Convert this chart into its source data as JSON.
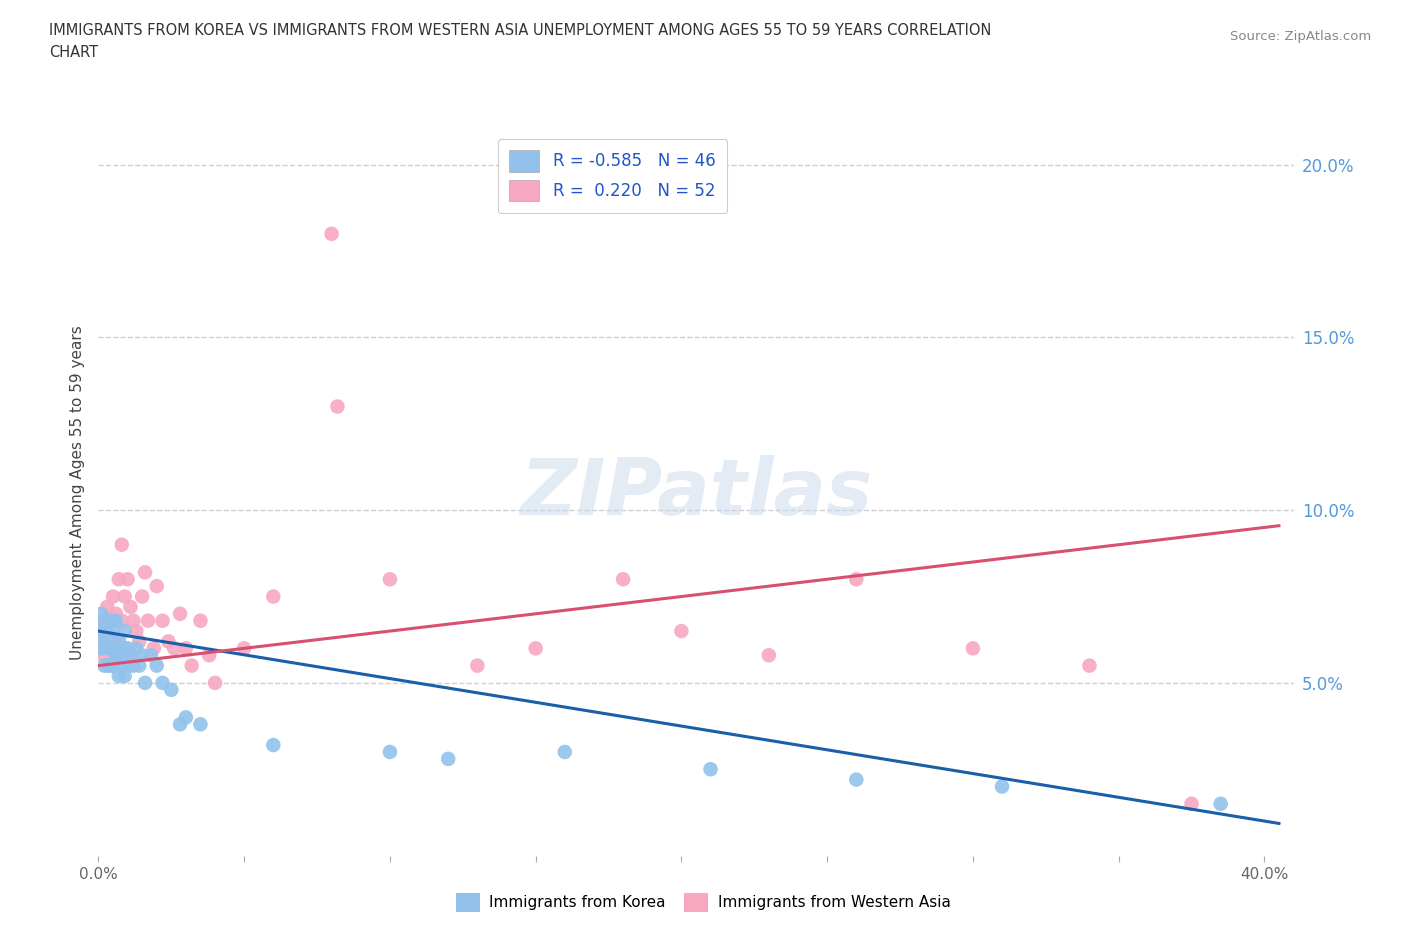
{
  "title_line1": "IMMIGRANTS FROM KOREA VS IMMIGRANTS FROM WESTERN ASIA UNEMPLOYMENT AMONG AGES 55 TO 59 YEARS CORRELATION",
  "title_line2": "CHART",
  "source": "Source: ZipAtlas.com",
  "ylabel": "Unemployment Among Ages 55 to 59 years",
  "xlim": [
    0.0,
    0.41
  ],
  "ylim": [
    0.0,
    0.21
  ],
  "korea_R": -0.585,
  "korea_N": 46,
  "western_asia_R": 0.22,
  "western_asia_N": 52,
  "korea_color": "#92c2ec",
  "western_asia_color": "#f7a8c0",
  "korea_line_color": "#1a5faa",
  "western_asia_line_color": "#d85070",
  "watermark_text": "ZIPatlas",
  "background_color": "#ffffff",
  "grid_color": "#d0d0d0",
  "ytick_positions": [
    0.05,
    0.1,
    0.15,
    0.2
  ],
  "ytick_labels": [
    "5.0%",
    "10.0%",
    "15.0%",
    "20.0%"
  ],
  "legend_korea_label": "R = -0.585   N = 46",
  "legend_western_label": "R =  0.220   N = 52",
  "bottom_legend_korea": "Immigrants from Korea",
  "bottom_legend_western": "Immigrants from Western Asia",
  "korea_x": [
    0.001,
    0.001,
    0.001,
    0.002,
    0.002,
    0.002,
    0.003,
    0.003,
    0.003,
    0.004,
    0.004,
    0.005,
    0.005,
    0.005,
    0.006,
    0.006,
    0.007,
    0.007,
    0.007,
    0.008,
    0.008,
    0.009,
    0.009,
    0.01,
    0.01,
    0.011,
    0.012,
    0.013,
    0.014,
    0.015,
    0.016,
    0.018,
    0.02,
    0.022,
    0.025,
    0.028,
    0.03,
    0.035,
    0.06,
    0.1,
    0.12,
    0.16,
    0.21,
    0.26,
    0.31,
    0.385
  ],
  "korea_y": [
    0.07,
    0.065,
    0.06,
    0.068,
    0.062,
    0.055,
    0.065,
    0.06,
    0.055,
    0.068,
    0.055,
    0.065,
    0.06,
    0.055,
    0.068,
    0.058,
    0.062,
    0.058,
    0.052,
    0.06,
    0.055,
    0.065,
    0.052,
    0.06,
    0.055,
    0.058,
    0.055,
    0.06,
    0.055,
    0.058,
    0.05,
    0.058,
    0.055,
    0.05,
    0.048,
    0.038,
    0.04,
    0.038,
    0.032,
    0.03,
    0.028,
    0.03,
    0.025,
    0.022,
    0.02,
    0.015
  ],
  "western_x": [
    0.001,
    0.001,
    0.002,
    0.002,
    0.003,
    0.003,
    0.004,
    0.004,
    0.005,
    0.005,
    0.006,
    0.006,
    0.007,
    0.007,
    0.008,
    0.008,
    0.009,
    0.009,
    0.01,
    0.01,
    0.011,
    0.012,
    0.013,
    0.014,
    0.015,
    0.016,
    0.017,
    0.019,
    0.02,
    0.022,
    0.024,
    0.026,
    0.028,
    0.03,
    0.032,
    0.035,
    0.038,
    0.04,
    0.05,
    0.06,
    0.08,
    0.082,
    0.1,
    0.13,
    0.15,
    0.18,
    0.2,
    0.23,
    0.26,
    0.3,
    0.34,
    0.375
  ],
  "western_y": [
    0.065,
    0.06,
    0.068,
    0.058,
    0.072,
    0.062,
    0.06,
    0.055,
    0.075,
    0.062,
    0.07,
    0.058,
    0.08,
    0.062,
    0.09,
    0.068,
    0.075,
    0.06,
    0.08,
    0.058,
    0.072,
    0.068,
    0.065,
    0.062,
    0.075,
    0.082,
    0.068,
    0.06,
    0.078,
    0.068,
    0.062,
    0.06,
    0.07,
    0.06,
    0.055,
    0.068,
    0.058,
    0.05,
    0.06,
    0.075,
    0.18,
    0.13,
    0.08,
    0.055,
    0.06,
    0.08,
    0.065,
    0.058,
    0.08,
    0.06,
    0.055,
    0.015
  ]
}
